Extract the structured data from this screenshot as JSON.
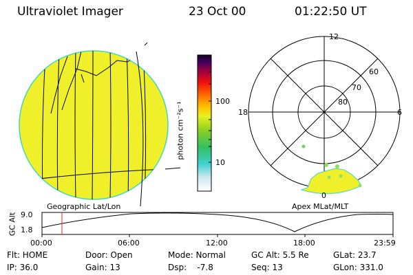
{
  "header": {
    "instrument": "Ultraviolet Imager",
    "date": "23 Oct 00",
    "time": "01:22:50 UT"
  },
  "colorbar": {
    "unit_label": "photon cm⁻²s⁻¹",
    "ticks": [
      "100",
      "10"
    ],
    "scale": "log"
  },
  "polar_plot": {
    "mlt_labels": [
      "12",
      "18",
      "6",
      "0"
    ],
    "lat_labels": [
      "60",
      "70",
      "80"
    ]
  },
  "map_labels": {
    "left": "Geographic Lat/Lon",
    "right": "Apex MLat/MLT"
  },
  "altitude_panel": {
    "axis_title": "GC Alt",
    "y_max": "9.0",
    "y_min": "1.8",
    "time_ticks": [
      "00:00",
      "06:00",
      "12:00",
      "18:00",
      "23:59"
    ],
    "current_time_hours": 1.38
  },
  "info": {
    "flt": "Flt: HOME",
    "door": "Door: Open",
    "mode": "Mode: Normal",
    "gcalt": "GC Alt: 5.5 Re",
    "glat": "GLat:  23.7",
    "ip": "IP: 36.0",
    "gain": "Gain: 13",
    "dsp": "Dsp:    -7.8",
    "seq": "Seq: 13",
    "glon": "GLon: 331.0"
  },
  "colors": {
    "disk": "#f0f02a",
    "disk_edge": "#3fd6c0",
    "marker": "#ff2020"
  }
}
